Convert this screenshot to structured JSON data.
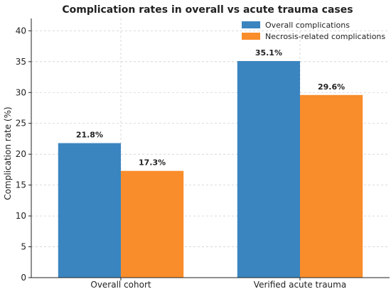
{
  "chart_data": {
    "type": "bar",
    "title": "Complication rates in overall vs acute trauma cases",
    "xlabel": "",
    "ylabel": "Complication rate (%)",
    "categories": [
      "Overall cohort",
      "Verified acute trauma"
    ],
    "series": [
      {
        "name": "Overall complications",
        "color": "#3a85c0",
        "values": [
          21.8,
          35.1
        ],
        "labels": [
          "21.8%",
          "35.1%"
        ]
      },
      {
        "name": "Necrosis-related complications",
        "color": "#f98d2b",
        "values": [
          17.3,
          29.6
        ],
        "labels": [
          "17.3%",
          "29.6%"
        ]
      }
    ],
    "ylim": [
      0,
      42
    ],
    "yticks": [
      0,
      5,
      10,
      15,
      20,
      25,
      30,
      35,
      40
    ],
    "grid": true,
    "legend_position": "top-right"
  }
}
